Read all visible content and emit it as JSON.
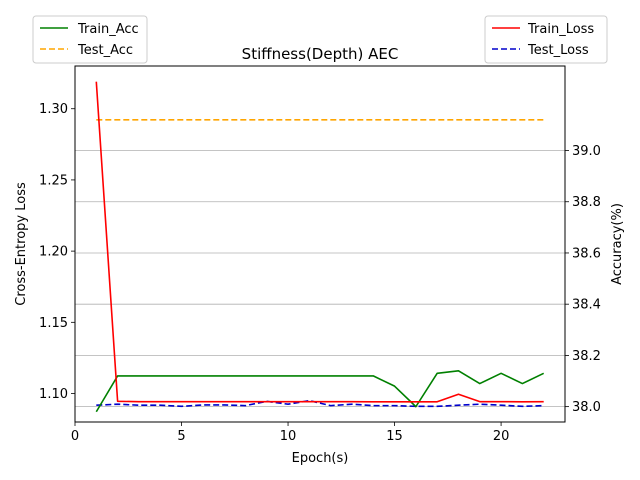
{
  "chart_data": {
    "type": "line",
    "title": "Stiffness(Depth) AEC",
    "xlabel": "Epoch(s)",
    "ylabel_left": "Cross-Entropy Loss",
    "ylabel_right": "Accuracy(%)",
    "xlim": [
      0,
      23
    ],
    "ylim_left": [
      1.08,
      1.33
    ],
    "ylim_right": [
      37.94,
      39.33
    ],
    "x_ticks": [
      0,
      5,
      10,
      15,
      20
    ],
    "y_ticks_left": [
      1.1,
      1.15,
      1.2,
      1.25,
      1.3
    ],
    "y_ticks_left_labels": [
      "1.10",
      "1.15",
      "1.20",
      "1.25",
      "1.30"
    ],
    "y_ticks_right": [
      38.0,
      38.2,
      38.4,
      38.6,
      38.8,
      39.0
    ],
    "y_ticks_right_labels": [
      "38.0",
      "38.2",
      "38.4",
      "38.6",
      "38.8",
      "39.0"
    ],
    "grid": "horizontal lines at right-axis ticks",
    "x": [
      1,
      2,
      3,
      4,
      5,
      6,
      7,
      8,
      9,
      10,
      11,
      12,
      13,
      14,
      15,
      16,
      17,
      18,
      19,
      20,
      21,
      22
    ],
    "left_series": [
      {
        "name": "Train_Loss",
        "color": "#ff0000",
        "style": "solid",
        "values": [
          1.319,
          1.0945,
          1.0943,
          1.0943,
          1.0943,
          1.0943,
          1.0943,
          1.0943,
          1.0943,
          1.0943,
          1.0943,
          1.0943,
          1.0943,
          1.0942,
          1.0942,
          1.0942,
          1.0942,
          1.0995,
          1.0943,
          1.0943,
          1.0942,
          1.0943
        ]
      },
      {
        "name": "Test_Loss",
        "color": "#0000cc",
        "style": "dashed",
        "values": [
          1.0918,
          1.0925,
          1.0918,
          1.0918,
          1.091,
          1.092,
          1.092,
          1.0915,
          1.0945,
          1.0925,
          1.095,
          1.0915,
          1.0925,
          1.0915,
          1.0915,
          1.091,
          1.091,
          1.0918,
          1.0925,
          1.0918,
          1.091,
          1.0915
        ]
      }
    ],
    "right_series": [
      {
        "name": "Train_Acc",
        "color": "#008000",
        "style": "solid",
        "values": [
          37.98,
          38.12,
          38.12,
          38.12,
          38.12,
          38.12,
          38.12,
          38.12,
          38.12,
          38.12,
          38.12,
          38.12,
          38.12,
          38.12,
          38.08,
          38.0,
          38.13,
          38.14,
          38.09,
          38.13,
          38.09,
          38.13
        ]
      },
      {
        "name": "Test_Acc",
        "color": "#ffa500",
        "style": "dashed",
        "values": [
          39.12,
          39.12,
          39.12,
          39.12,
          39.12,
          39.12,
          39.12,
          39.12,
          39.12,
          39.12,
          39.12,
          39.12,
          39.12,
          39.12,
          39.12,
          39.12,
          39.12,
          39.12,
          39.12,
          39.12,
          39.12,
          39.12
        ]
      }
    ],
    "legend_left": {
      "placement": "top-left, outside plot",
      "entries": [
        "Train_Acc",
        "Test_Acc"
      ]
    },
    "legend_right": {
      "placement": "top-right, outside plot",
      "entries": [
        "Train_Loss",
        "Test_Loss"
      ]
    }
  }
}
